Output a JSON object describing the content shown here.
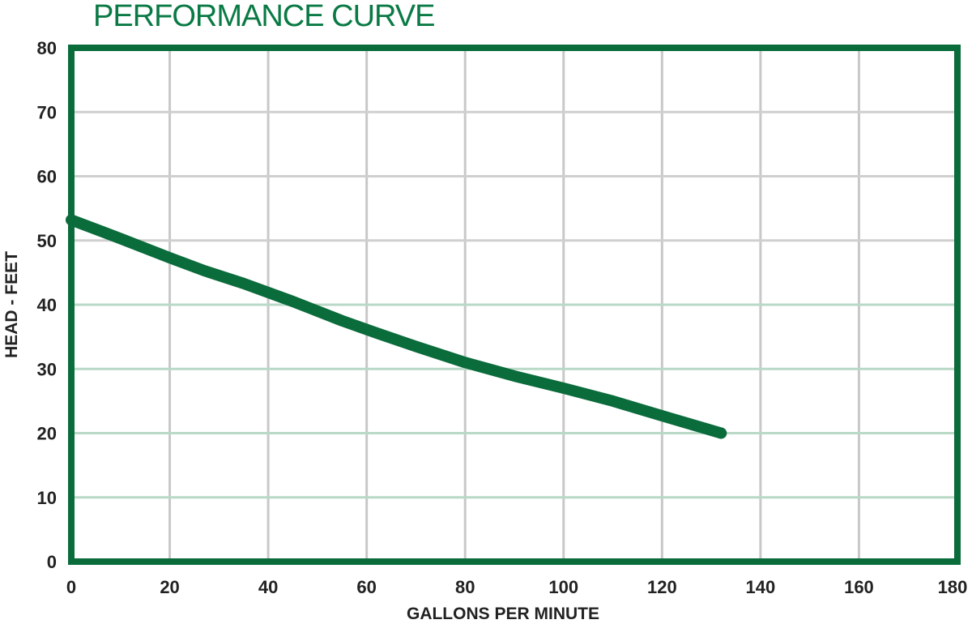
{
  "chart_data": {
    "type": "line",
    "title": "PERFORMANCE CURVE",
    "xlabel": "GALLONS PER MINUTE",
    "ylabel": "HEAD - FEET",
    "xlim": [
      0,
      180
    ],
    "ylim": [
      0,
      80
    ],
    "x_ticks": [
      0,
      20,
      40,
      60,
      80,
      100,
      120,
      140,
      160,
      180
    ],
    "y_ticks": [
      0,
      10,
      20,
      30,
      40,
      50,
      60,
      70,
      80
    ],
    "grid": true,
    "series": [
      {
        "x": [
          0,
          10,
          20,
          27,
          35,
          45,
          55,
          62,
          70,
          80,
          90,
          100,
          110,
          120,
          132
        ],
        "y": [
          53.2,
          50.3,
          47.3,
          45.3,
          43.3,
          40.5,
          37.5,
          35.6,
          33.5,
          31.0,
          28.9,
          27.0,
          25.0,
          22.7,
          20.0
        ]
      }
    ],
    "colors": {
      "frame": "#0a6b3b",
      "curve": "#0a6b3b",
      "grid_vertical": "#c8c8c8",
      "grid_horizontal_upper": "#cfcfcf",
      "grid_horizontal_lower": "#b9d9c7",
      "title": "#0a7a45"
    }
  }
}
